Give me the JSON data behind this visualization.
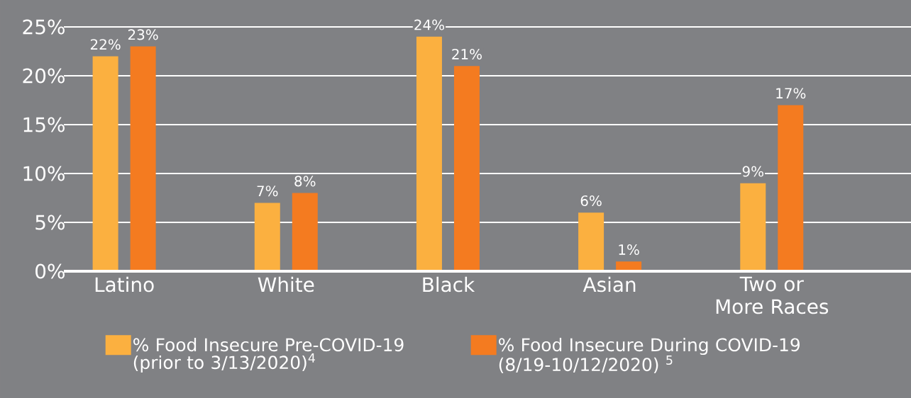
{
  "chart_data": {
    "type": "bar",
    "categories": [
      "Latino",
      "White",
      "Black",
      "Asian",
      "Two or More Races"
    ],
    "series": [
      {
        "name": "% Food Insecure Pre-COVID-19 (prior to 3/13/2020)$^{4}$",
        "color": "#fbb040",
        "values": [
          22,
          7,
          24,
          6,
          9
        ],
        "value_labels": [
          "22%",
          "7%",
          "24%",
          "6%",
          "9%"
        ]
      },
      {
        "name": "% Food Insecure During COVID-19 (8/19-10/12/2020) $^{5}$",
        "color": "#f47b20",
        "values": [
          23,
          8,
          21,
          1,
          17
        ],
        "value_labels": [
          "23%",
          "8%",
          "21%",
          "1%",
          "17%"
        ]
      }
    ],
    "ylim": [
      0,
      25
    ],
    "yticks": [
      {
        "value": 0,
        "label": "0%"
      },
      {
        "value": 5,
        "label": "5%"
      },
      {
        "value": 10,
        "label": "10%"
      },
      {
        "value": 15,
        "label": "15%"
      },
      {
        "value": 20,
        "label": "20%"
      },
      {
        "value": 25,
        "label": "25%"
      }
    ],
    "grid": "y",
    "legend": "bottom"
  }
}
